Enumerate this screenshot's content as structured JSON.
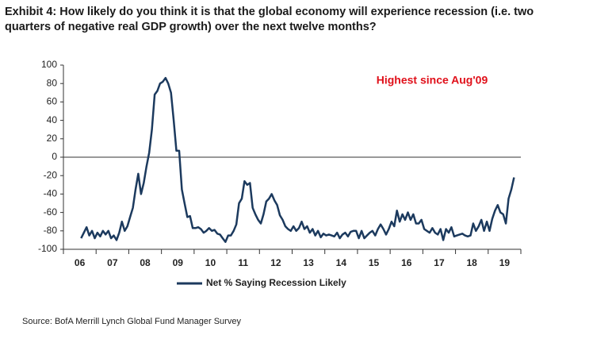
{
  "chart_data": {
    "type": "line",
    "title": "Exhibit 4: How likely do you think it is that the global economy will experience recession (i.e. two quarters of negative real GDP growth) over the next twelve months?",
    "annotation": "Highest since Aug'09",
    "source": "Source: BofA Merrill Lynch Global Fund Manager Survey",
    "categories": [
      null,
      null,
      null,
      null,
      null,
      "06",
      null,
      null,
      null,
      null,
      null,
      null,
      null,
      null,
      null,
      null,
      null,
      "07",
      null,
      null,
      null,
      null,
      null,
      null,
      null,
      null,
      null,
      null,
      null,
      "08",
      null,
      null,
      null,
      null,
      null,
      null,
      null,
      null,
      null,
      null,
      null,
      "09",
      null,
      null,
      null,
      null,
      null,
      null,
      null,
      null,
      null,
      null,
      null,
      "10",
      null,
      null,
      null,
      null,
      null,
      null,
      null,
      null,
      null,
      null,
      null,
      "11",
      null,
      null,
      null,
      null,
      null,
      null,
      null,
      null,
      null,
      null,
      null,
      "12",
      null,
      null,
      null,
      null,
      null,
      null,
      null,
      null,
      null,
      null,
      null,
      "13",
      null,
      null,
      null,
      null,
      null,
      null,
      null,
      null,
      null,
      null,
      null,
      "14",
      null,
      null,
      null,
      null,
      null,
      null,
      null,
      null,
      null,
      null,
      null,
      "15",
      null,
      null,
      null,
      null,
      null,
      null,
      null,
      null,
      null,
      null,
      null,
      "16",
      null,
      null,
      null,
      null,
      null,
      null,
      null,
      null,
      null,
      null,
      null,
      "17",
      null,
      null,
      null,
      null,
      null,
      null,
      null,
      null,
      null,
      null,
      null,
      "18",
      null,
      null,
      null,
      null,
      null,
      null,
      null,
      null,
      null,
      null,
      null,
      "19",
      null,
      null,
      null,
      null,
      null,
      null
    ],
    "series": [
      {
        "name": "Net % Saying Recession Likely",
        "color": "#1c3a5e",
        "values": [
          null,
          null,
          null,
          null,
          null,
          null,
          -88,
          -82,
          -76,
          -85,
          -80,
          -88,
          -82,
          -86,
          -80,
          -84,
          -80,
          -88,
          -85,
          -90,
          -82,
          -70,
          -80,
          -75,
          -65,
          -55,
          -35,
          -18,
          -40,
          -28,
          -10,
          5,
          30,
          68,
          72,
          80,
          82,
          86,
          80,
          70,
          40,
          7,
          7,
          -35,
          -50,
          -65,
          -64,
          -77,
          -77,
          -76,
          -78,
          -82,
          -80,
          -77,
          -80,
          -79,
          -83,
          -84,
          -88,
          -92,
          -85,
          -85,
          -80,
          -73,
          -50,
          -45,
          -26,
          -30,
          -28,
          -55,
          -62,
          -68,
          -72,
          -62,
          -48,
          -45,
          -40,
          -47,
          -52,
          -63,
          -68,
          -75,
          -78,
          -80,
          -75,
          -80,
          -77,
          -70,
          -78,
          -75,
          -82,
          -78,
          -85,
          -80,
          -87,
          -83,
          -85,
          -84,
          -85,
          -86,
          -82,
          -88,
          -84,
          -82,
          -86,
          -81,
          -80,
          -80,
          -88,
          -80,
          -88,
          -85,
          -82,
          -80,
          -85,
          -78,
          -73,
          -78,
          -84,
          -78,
          -70,
          -75,
          -58,
          -70,
          -62,
          -68,
          -60,
          -68,
          -62,
          -72,
          -72,
          -68,
          -78,
          -80,
          -82,
          -77,
          -82,
          -84,
          -78,
          -90,
          -78,
          -82,
          -76,
          -86,
          -85,
          -84,
          -83,
          -85,
          -86,
          -85,
          -72,
          -80,
          -75,
          -68,
          -80,
          -70,
          -80,
          -67,
          -58,
          -52,
          -60,
          -62,
          -72,
          -45,
          -35,
          -22,
          null,
          null
        ]
      }
    ],
    "ylim": [
      -100,
      100
    ],
    "yticks": [
      -100,
      -80,
      -60,
      -40,
      -20,
      0,
      20,
      40,
      60,
      80,
      100
    ],
    "legend": "bottom",
    "grid": false
  }
}
